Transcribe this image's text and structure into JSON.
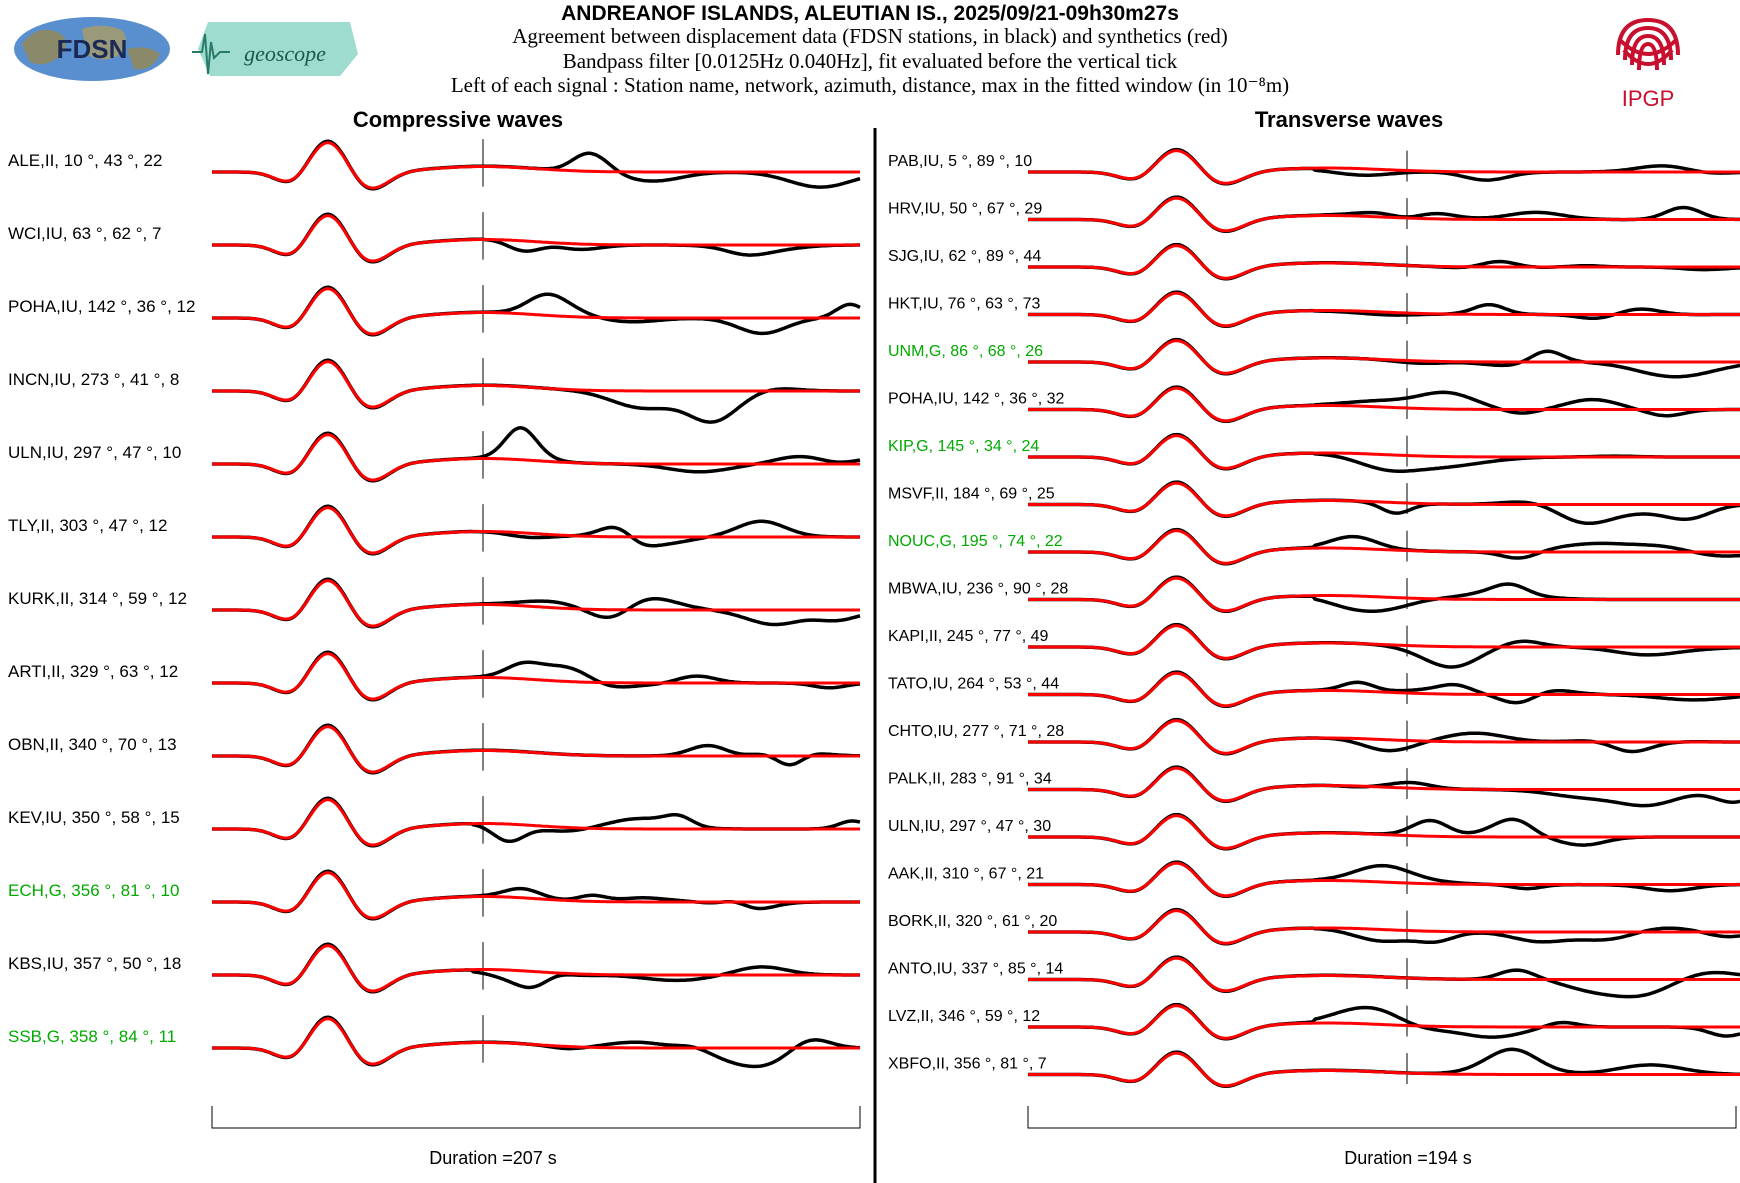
{
  "header": {
    "title": "ANDREANOF ISLANDS, ALEUTIAN IS., 2025/09/21-09h30m27s",
    "line1": "Agreement between displacement data (FDSN stations, in black) and synthetics (red)",
    "line2": "Bandpass filter [0.0125Hz 0.040Hz], fit evaluated before the vertical tick",
    "line3": "Left of each signal : Station name, network, azimuth, distance, max in the fitted window (in 10⁻⁸m)"
  },
  "logos": {
    "fdsn": "FDSN",
    "geoscope": "geoscope",
    "ipgp": "IPGP"
  },
  "colors": {
    "data": "#000000",
    "synthetic": "#ff0000",
    "station_green": "#00aa00"
  },
  "chart_data": [
    {
      "type": "line",
      "title": "Compressive waves",
      "duration_label": "Duration =207 s",
      "duration_s": 207,
      "stations": [
        {
          "label": "ALE,II, 10 °, 43 °, 22",
          "name": "ALE",
          "network": "II",
          "azimuth": 10,
          "distance": 43,
          "max": 22,
          "color": "black"
        },
        {
          "label": "WCI,IU, 63 °, 62 °, 7",
          "name": "WCI",
          "network": "IU",
          "azimuth": 63,
          "distance": 62,
          "max": 7,
          "color": "black"
        },
        {
          "label": "POHA,IU, 142 °, 36 °, 12",
          "name": "POHA",
          "network": "IU",
          "azimuth": 142,
          "distance": 36,
          "max": 12,
          "color": "black"
        },
        {
          "label": "INCN,IU, 273 °, 41 °, 8",
          "name": "INCN",
          "network": "IU",
          "azimuth": 273,
          "distance": 41,
          "max": 8,
          "color": "black"
        },
        {
          "label": "ULN,IU, 297 °, 47 °, 10",
          "name": "ULN",
          "network": "IU",
          "azimuth": 297,
          "distance": 47,
          "max": 10,
          "color": "black"
        },
        {
          "label": "TLY,II, 303 °, 47 °, 12",
          "name": "TLY",
          "network": "II",
          "azimuth": 303,
          "distance": 47,
          "max": 12,
          "color": "black"
        },
        {
          "label": "KURK,II, 314 °, 59 °, 12",
          "name": "KURK",
          "network": "II",
          "azimuth": 314,
          "distance": 59,
          "max": 12,
          "color": "black"
        },
        {
          "label": "ARTI,II, 329 °, 63 °, 12",
          "name": "ARTI",
          "network": "II",
          "azimuth": 329,
          "distance": 63,
          "max": 12,
          "color": "black"
        },
        {
          "label": "OBN,II, 340 °, 70 °, 13",
          "name": "OBN",
          "network": "II",
          "azimuth": 340,
          "distance": 70,
          "max": 13,
          "color": "black"
        },
        {
          "label": "KEV,IU, 350 °, 58 °, 15",
          "name": "KEV",
          "network": "IU",
          "azimuth": 350,
          "distance": 58,
          "max": 15,
          "color": "black"
        },
        {
          "label": "ECH,G, 356 °, 81 °, 10",
          "name": "ECH",
          "network": "G",
          "azimuth": 356,
          "distance": 81,
          "max": 10,
          "color": "green"
        },
        {
          "label": "KBS,IU, 357 °, 50 °, 18",
          "name": "KBS",
          "network": "IU",
          "azimuth": 357,
          "distance": 50,
          "max": 18,
          "color": "black"
        },
        {
          "label": "SSB,G, 358 °, 84 °, 11",
          "name": "SSB",
          "network": "G",
          "azimuth": 358,
          "distance": 84,
          "max": 11,
          "color": "green"
        }
      ]
    },
    {
      "type": "line",
      "title": "Transverse waves",
      "duration_label": "Duration =194 s",
      "duration_s": 194,
      "stations": [
        {
          "label": "PAB,IU, 5 °, 89 °, 10",
          "name": "PAB",
          "network": "IU",
          "azimuth": 5,
          "distance": 89,
          "max": 10,
          "color": "black"
        },
        {
          "label": "HRV,IU, 50 °, 67 °, 29",
          "name": "HRV",
          "network": "IU",
          "azimuth": 50,
          "distance": 67,
          "max": 29,
          "color": "black"
        },
        {
          "label": "SJG,IU, 62 °, 89 °, 44",
          "name": "SJG",
          "network": "IU",
          "azimuth": 62,
          "distance": 89,
          "max": 44,
          "color": "black"
        },
        {
          "label": "HKT,IU, 76 °, 63 °, 73",
          "name": "HKT",
          "network": "IU",
          "azimuth": 76,
          "distance": 63,
          "max": 73,
          "color": "black"
        },
        {
          "label": "UNM,G, 86 °, 68 °, 26",
          "name": "UNM",
          "network": "G",
          "azimuth": 86,
          "distance": 68,
          "max": 26,
          "color": "green"
        },
        {
          "label": "POHA,IU, 142 °, 36 °, 32",
          "name": "POHA",
          "network": "IU",
          "azimuth": 142,
          "distance": 36,
          "max": 32,
          "color": "black"
        },
        {
          "label": "KIP,G, 145 °, 34 °, 24",
          "name": "KIP",
          "network": "G",
          "azimuth": 145,
          "distance": 34,
          "max": 24,
          "color": "green"
        },
        {
          "label": "MSVF,II, 184 °, 69 °, 25",
          "name": "MSVF",
          "network": "II",
          "azimuth": 184,
          "distance": 69,
          "max": 25,
          "color": "black"
        },
        {
          "label": "NOUC,G, 195 °, 74 °, 22",
          "name": "NOUC",
          "network": "G",
          "azimuth": 195,
          "distance": 74,
          "max": 22,
          "color": "green"
        },
        {
          "label": "MBWA,IU, 236 °, 90 °, 28",
          "name": "MBWA",
          "network": "IU",
          "azimuth": 236,
          "distance": 90,
          "max": 28,
          "color": "black"
        },
        {
          "label": "KAPI,II, 245 °, 77 °, 49",
          "name": "KAPI",
          "network": "II",
          "azimuth": 245,
          "distance": 77,
          "max": 49,
          "color": "black"
        },
        {
          "label": "TATO,IU, 264 °, 53 °, 44",
          "name": "TATO",
          "network": "IU",
          "azimuth": 264,
          "distance": 53,
          "max": 44,
          "color": "black"
        },
        {
          "label": "CHTO,IU, 277 °, 71 °, 28",
          "name": "CHTO",
          "network": "IU",
          "azimuth": 277,
          "distance": 71,
          "max": 28,
          "color": "black"
        },
        {
          "label": "PALK,II, 283 °, 91 °, 34",
          "name": "PALK",
          "network": "II",
          "azimuth": 283,
          "distance": 91,
          "max": 34,
          "color": "black"
        },
        {
          "label": "ULN,IU, 297 °, 47 °, 30",
          "name": "ULN",
          "network": "IU",
          "azimuth": 297,
          "distance": 47,
          "max": 30,
          "color": "black"
        },
        {
          "label": "AAK,II, 310 °, 67 °, 21",
          "name": "AAK",
          "network": "II",
          "azimuth": 310,
          "distance": 67,
          "max": 21,
          "color": "black"
        },
        {
          "label": "BORK,II, 320 °, 61 °, 20",
          "name": "BORK",
          "network": "II",
          "azimuth": 320,
          "distance": 61,
          "max": 20,
          "color": "black"
        },
        {
          "label": "ANTO,IU, 337 °, 85 °, 14",
          "name": "ANTO",
          "network": "IU",
          "azimuth": 337,
          "distance": 85,
          "max": 14,
          "color": "black"
        },
        {
          "label": "LVZ,II, 346 °, 59 °, 12",
          "name": "LVZ",
          "network": "II",
          "azimuth": 346,
          "distance": 59,
          "max": 12,
          "color": "black"
        },
        {
          "label": "XBFO,II, 356 °, 81 °, 7",
          "name": "XBFO",
          "network": "II",
          "azimuth": 356,
          "distance": 81,
          "max": 7,
          "color": "black"
        }
      ]
    }
  ]
}
